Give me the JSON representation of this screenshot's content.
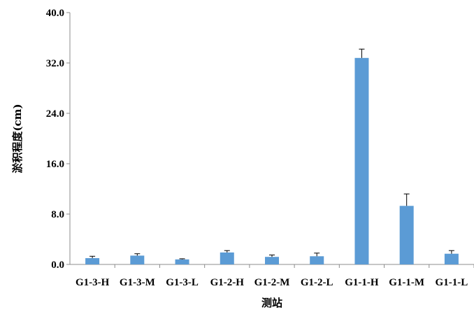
{
  "chart_data": {
    "type": "bar",
    "title": "",
    "xlabel": "测站",
    "ylabel": "淤积程度(cm)",
    "categories": [
      "G1-3-H",
      "G1-3-M",
      "G1-3-L",
      "G1-2-H",
      "G1-2-M",
      "G1-2-L",
      "G1-1-H",
      "G1-1-M",
      "G1-1-L"
    ],
    "values": [
      1.0,
      1.4,
      0.8,
      1.9,
      1.2,
      1.3,
      32.8,
      9.3,
      1.7
    ],
    "errors": [
      0.3,
      0.3,
      0.1,
      0.3,
      0.3,
      0.5,
      1.4,
      1.9,
      0.5
    ],
    "ylim": [
      0,
      40
    ],
    "yticks": [
      "0.0",
      "8.0",
      "16.0",
      "24.0",
      "32.0",
      "40.0"
    ],
    "ytick_values": [
      0,
      8,
      16,
      24,
      32,
      40
    ],
    "grid": false,
    "legend": "none",
    "bar_color": "#5B9BD5"
  }
}
